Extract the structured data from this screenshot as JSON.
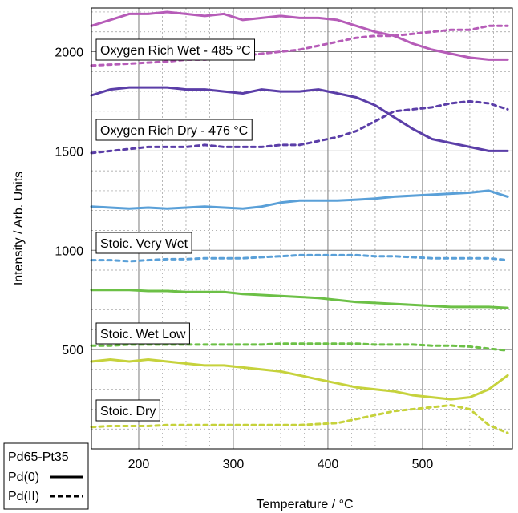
{
  "chart_data": {
    "type": "line",
    "xlabel": "Temperature / °C",
    "ylabel": "Intensity / Arb. Units",
    "xlim": [
      150,
      595
    ],
    "ylim": [
      0,
      2220
    ],
    "x_ticks": [
      200,
      300,
      400,
      500
    ],
    "y_ticks": [
      500,
      1000,
      1500,
      2000
    ],
    "grid": true,
    "legend_title": "Pd65-Pt35",
    "legend_entries": [
      {
        "label": "Pd(0)",
        "style": "solid"
      },
      {
        "label": "Pd(II)",
        "style": "dashed"
      }
    ],
    "legend_position": "bottom-left",
    "series": [
      {
        "name": "Oxygen Rich Wet - 485 °C",
        "species": "Pd(0)",
        "style": "solid",
        "color": "#b65cb8",
        "x": [
          150,
          170,
          190,
          210,
          230,
          250,
          270,
          290,
          310,
          330,
          350,
          370,
          390,
          410,
          430,
          450,
          470,
          490,
          510,
          530,
          550,
          570,
          590
        ],
        "y": [
          2130,
          2160,
          2190,
          2190,
          2200,
          2190,
          2180,
          2190,
          2160,
          2170,
          2180,
          2170,
          2170,
          2160,
          2130,
          2100,
          2080,
          2040,
          2010,
          1990,
          1970,
          1960,
          1960
        ]
      },
      {
        "name": "Oxygen Rich Wet - 485 °C",
        "species": "Pd(II)",
        "style": "dashed",
        "color": "#b65cb8",
        "x": [
          150,
          170,
          190,
          210,
          230,
          250,
          270,
          290,
          310,
          330,
          350,
          370,
          390,
          410,
          430,
          450,
          470,
          490,
          510,
          530,
          550,
          570,
          590
        ],
        "y": [
          1930,
          1935,
          1940,
          1945,
          1950,
          1960,
          1960,
          1970,
          1980,
          1990,
          2000,
          2010,
          2030,
          2050,
          2070,
          2080,
          2080,
          2090,
          2100,
          2110,
          2110,
          2130,
          2130
        ]
      },
      {
        "name": "Oxygen Rich Dry - 476 °C",
        "species": "Pd(0)",
        "style": "solid",
        "color": "#5b3ea8",
        "x": [
          150,
          170,
          190,
          210,
          230,
          250,
          270,
          290,
          310,
          330,
          350,
          370,
          390,
          410,
          430,
          450,
          470,
          490,
          510,
          530,
          550,
          570,
          590
        ],
        "y": [
          1780,
          1810,
          1820,
          1820,
          1820,
          1810,
          1810,
          1800,
          1790,
          1810,
          1800,
          1800,
          1810,
          1790,
          1770,
          1730,
          1670,
          1610,
          1560,
          1540,
          1520,
          1500,
          1500
        ]
      },
      {
        "name": "Oxygen Rich Dry - 476 °C",
        "species": "Pd(II)",
        "style": "dashed",
        "color": "#5b3ea8",
        "x": [
          150,
          170,
          190,
          210,
          230,
          250,
          270,
          290,
          310,
          330,
          350,
          370,
          390,
          410,
          430,
          450,
          470,
          490,
          510,
          530,
          550,
          570,
          590
        ],
        "y": [
          1490,
          1500,
          1510,
          1520,
          1520,
          1520,
          1530,
          1520,
          1520,
          1520,
          1530,
          1530,
          1550,
          1570,
          1600,
          1650,
          1700,
          1710,
          1720,
          1740,
          1750,
          1740,
          1710
        ]
      },
      {
        "name": "Stoic. Very Wet",
        "species": "Pd(0)",
        "style": "solid",
        "color": "#5aa0d8",
        "x": [
          150,
          170,
          190,
          210,
          230,
          250,
          270,
          290,
          310,
          330,
          350,
          370,
          390,
          410,
          430,
          450,
          470,
          490,
          510,
          530,
          550,
          570,
          590
        ],
        "y": [
          1220,
          1215,
          1210,
          1215,
          1210,
          1215,
          1220,
          1215,
          1210,
          1220,
          1240,
          1250,
          1250,
          1250,
          1255,
          1260,
          1270,
          1275,
          1280,
          1285,
          1290,
          1300,
          1270
        ]
      },
      {
        "name": "Stoic. Very Wet",
        "species": "Pd(II)",
        "style": "dashed",
        "color": "#5aa0d8",
        "x": [
          150,
          170,
          190,
          210,
          230,
          250,
          270,
          290,
          310,
          330,
          350,
          370,
          390,
          410,
          430,
          450,
          470,
          490,
          510,
          530,
          550,
          570,
          590
        ],
        "y": [
          950,
          950,
          945,
          950,
          955,
          955,
          960,
          960,
          960,
          965,
          970,
          975,
          975,
          975,
          975,
          970,
          970,
          965,
          960,
          960,
          960,
          960,
          950
        ]
      },
      {
        "name": "Stoic. Wet Low",
        "species": "Pd(0)",
        "style": "solid",
        "color": "#6cc046",
        "x": [
          150,
          170,
          190,
          210,
          230,
          250,
          270,
          290,
          310,
          330,
          350,
          370,
          390,
          410,
          430,
          450,
          470,
          490,
          510,
          530,
          550,
          570,
          590
        ],
        "y": [
          800,
          800,
          800,
          795,
          795,
          790,
          790,
          790,
          780,
          775,
          770,
          765,
          760,
          750,
          740,
          735,
          730,
          725,
          720,
          715,
          715,
          715,
          710
        ]
      },
      {
        "name": "Stoic. Wet Low",
        "species": "Pd(II)",
        "style": "dashed",
        "color": "#6cc046",
        "x": [
          150,
          170,
          190,
          210,
          230,
          250,
          270,
          290,
          310,
          330,
          350,
          370,
          390,
          410,
          430,
          450,
          470,
          490,
          510,
          530,
          550,
          570,
          590
        ],
        "y": [
          520,
          520,
          525,
          525,
          525,
          525,
          525,
          525,
          525,
          525,
          530,
          530,
          530,
          530,
          530,
          525,
          525,
          525,
          520,
          520,
          515,
          505,
          495
        ]
      },
      {
        "name": "Stoic. Dry",
        "species": "Pd(0)",
        "style": "solid",
        "color": "#c6d23c",
        "x": [
          150,
          170,
          190,
          210,
          230,
          250,
          270,
          290,
          310,
          330,
          350,
          370,
          390,
          410,
          430,
          450,
          470,
          490,
          510,
          530,
          550,
          570,
          590
        ],
        "y": [
          440,
          450,
          440,
          450,
          440,
          430,
          420,
          420,
          410,
          400,
          390,
          370,
          350,
          330,
          310,
          300,
          290,
          270,
          260,
          250,
          260,
          300,
          370
        ]
      },
      {
        "name": "Stoic. Dry",
        "species": "Pd(II)",
        "style": "dashed",
        "color": "#c6d23c",
        "x": [
          150,
          170,
          190,
          210,
          230,
          250,
          270,
          290,
          310,
          330,
          350,
          370,
          390,
          410,
          430,
          450,
          470,
          490,
          510,
          530,
          550,
          570,
          590
        ],
        "y": [
          110,
          115,
          115,
          115,
          120,
          120,
          120,
          120,
          120,
          120,
          120,
          120,
          125,
          130,
          150,
          170,
          190,
          200,
          210,
          220,
          200,
          120,
          80
        ]
      }
    ],
    "series_labels": [
      "Oxygen Rich Wet - 485 °C",
      "Oxygen Rich Dry - 476 °C",
      "Stoic. Very Wet",
      "Stoic. Wet Low",
      "Stoic. Dry"
    ]
  }
}
